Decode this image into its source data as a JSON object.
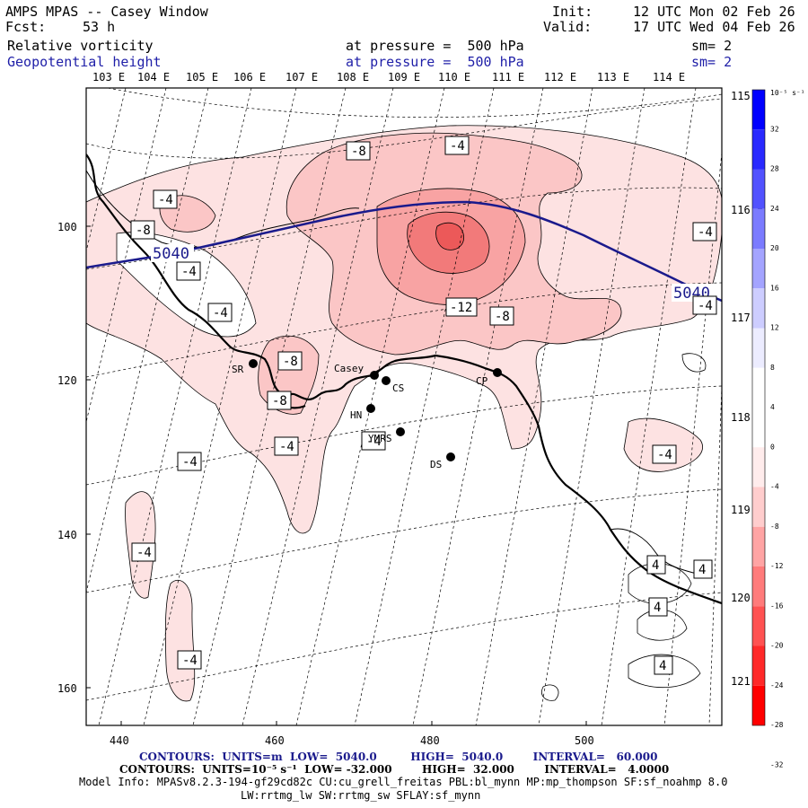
{
  "header": {
    "title": "AMPS MPAS -- Casey Window",
    "fcst_label": "Fcst:",
    "fcst_value": "53 h",
    "init_label": "Init:",
    "init_value": "12 UTC Mon 02 Feb 26",
    "valid_label": "Valid:",
    "valid_value": "17 UTC Wed 04 Feb 26",
    "field1": "Relative vorticity",
    "field1_level": "at pressure =  500 hPa",
    "field1_smooth": "sm= 2",
    "field2": "Geopotential height",
    "field2_level": "at pressure =  500 hPa",
    "field2_smooth": "sm= 2"
  },
  "lon_labels_top": [
    "103 E",
    "104 E",
    "105 E",
    "106 E",
    "107 E",
    "108 E",
    "109 E",
    "110 E",
    "111 E",
    "112 E",
    "113 E",
    "114 E"
  ],
  "lon_labels_right": [
    "115 E",
    "116 E",
    "117 E",
    "118 E",
    "119 E",
    "120 E",
    "121 E"
  ],
  "y_ticks": [
    "100",
    "120",
    "140",
    "160"
  ],
  "x_ticks": [
    "440",
    "460",
    "480",
    "500"
  ],
  "colorbar": {
    "unit": "10⁻⁵ s⁻¹",
    "labels": [
      "32",
      "28",
      "24",
      "20",
      "16",
      "12",
      "8",
      "4",
      "0",
      "-4",
      "-8",
      "-12",
      "-16",
      "-20",
      "-24",
      "-28",
      "-32"
    ],
    "colors": [
      "#0000ff",
      "#2929ff",
      "#5252ff",
      "#7b7bff",
      "#a4a4ff",
      "#cdcdff",
      "#ececff",
      "#ffffff",
      "#ffffff",
      "#ffecec",
      "#ffcdcd",
      "#ffa4a4",
      "#ff7b7b",
      "#ff5252",
      "#ff2929",
      "#ff0000"
    ]
  },
  "map": {
    "height_contour_label": "5040",
    "vorticity_labels": [
      {
        "text": "-4"
      },
      {
        "text": "-8"
      },
      {
        "text": "-4"
      },
      {
        "text": "-8"
      },
      {
        "text": "-4"
      },
      {
        "text": "-4"
      },
      {
        "text": "-4"
      },
      {
        "text": "-12"
      },
      {
        "text": "-8"
      },
      {
        "text": "-8"
      },
      {
        "text": "-8"
      },
      {
        "text": "-4"
      },
      {
        "text": "-4"
      },
      {
        "text": "-4"
      },
      {
        "text": "-4"
      },
      {
        "text": "-4"
      },
      {
        "text": "-4"
      },
      {
        "text": "-4"
      },
      {
        "text": "4"
      },
      {
        "text": "4"
      },
      {
        "text": "4"
      },
      {
        "text": "4"
      },
      {
        "text": "-4"
      }
    ],
    "stations": [
      {
        "name": "SR"
      },
      {
        "name": "Casey"
      },
      {
        "name": "CS"
      },
      {
        "name": "HN"
      },
      {
        "name": "YMRS"
      },
      {
        "name": "CP"
      },
      {
        "name": "DS"
      }
    ]
  },
  "footer": {
    "line1": "CONTOURS:  UNITS=m  LOW=  5040.0         HIGH=  5040.0        INTERVAL=   60.000",
    "line2": "CONTOURS:  UNITS=10⁻⁵ s⁻¹  LOW= -32.000        HIGH=  32.000        INTERVAL=   4.0000",
    "line3": "Model Info: MPASv8.2.3-194-gf29cd82c CU:cu_grell_freitas PBL:bl_mynn MP:mp_thompson SF:sf_noahmp 8.0",
    "line4": "LW:rrtmg_lw SW:rrtmg_sw SFLAY:sf_mynn"
  }
}
